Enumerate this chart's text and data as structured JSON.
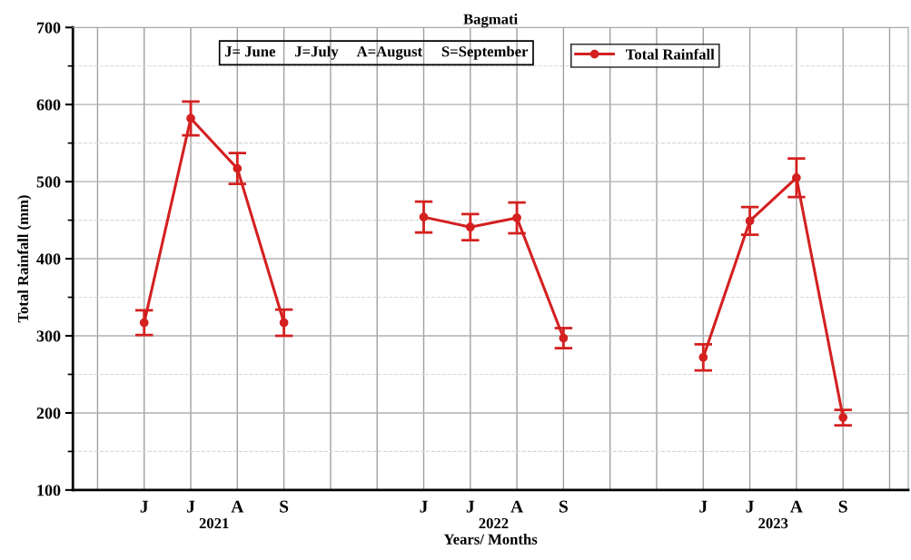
{
  "chart_data": {
    "type": "line",
    "title": "Bagmati",
    "xlabel": "Years/ Months",
    "ylabel": "Total Rainfall (mm)",
    "categories": [
      null,
      "J",
      "J",
      "A",
      "S",
      null,
      null,
      "J",
      "J",
      "A",
      "S",
      null,
      null,
      "J",
      "J",
      "A",
      "S",
      null
    ],
    "series": [
      {
        "name": "Total Rainfall",
        "color": "#d42020",
        "values": [
          null,
          317,
          582,
          517,
          317,
          null,
          null,
          454,
          441,
          453,
          297,
          null,
          null,
          272,
          449,
          505,
          194,
          null
        ],
        "errors": [
          null,
          16,
          22,
          20,
          17,
          null,
          null,
          20,
          17,
          20,
          13,
          null,
          null,
          17,
          18,
          25,
          10,
          null
        ]
      }
    ],
    "annotations": [
      "J= June     J=July     A=August     S=September",
      "2021",
      "2022",
      "2023"
    ],
    "ylim": [
      100,
      700
    ],
    "yticks": [
      100,
      200,
      300,
      400,
      500,
      600,
      700
    ],
    "grid": true,
    "legend": "top",
    "marker": "circle",
    "line_style": "solid"
  }
}
